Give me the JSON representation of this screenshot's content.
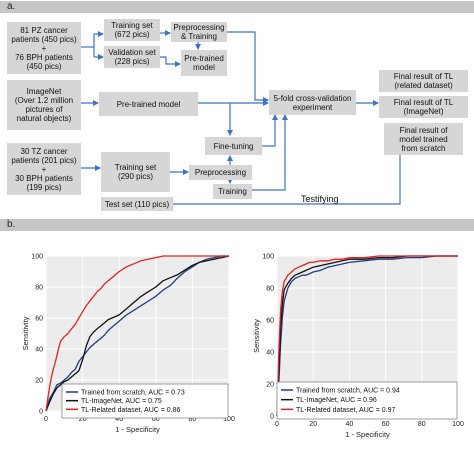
{
  "panel_a": {
    "label": "a.",
    "boxes": {
      "pz_bph": "81 PZ cancer\npatients (450 pics)\n+\n76 BPH patients\n(450 pics)",
      "imagenet": "ImageNet\n(Over 1.2 million\npictures of\nnatural objects)",
      "tz_bph": "30 TZ cancer\npatients (201 pics)\n+\n30 BPH patients\n(199 pics)",
      "training_set_1": "Training set\n(672 pics)",
      "validation_set": "Validation set\n(228 pics)",
      "preprocessing_training": "Preprocessing\n& Training",
      "pretrained_model_small": "Pre-trained\nmodel",
      "pretrained_model": "Pre-trained model",
      "cv_experiment": "5-fold cross-validation\nexperiment",
      "training_set_2": "Training set\n(290 pics)",
      "fine_tuning": "Fine-tuning",
      "preprocessing": "Preprocessing",
      "training": "Training",
      "test_set": "Test set (110 pics)"
    },
    "testifying": "Testifying",
    "results": {
      "r1": "Final result of TL\n(related dataset)",
      "r2": "Final result of TL\n(ImageNet)",
      "r3": "Final result of\nmodel trained\nfrom scratch"
    }
  },
  "panel_b": {
    "label": "b."
  },
  "colors": {
    "arrow": "#3a74c4",
    "box": "#d6d6d6",
    "plot_bg": "#ececec",
    "scratch": "#1f3d8a",
    "imagenet": "#111111",
    "related": "#e02424"
  },
  "chart_data": [
    {
      "type": "line",
      "xlabel": "1 - Specificity",
      "ylabel": "Sensitivity",
      "xlim": [
        0,
        100
      ],
      "ylim": [
        0,
        100
      ],
      "ticks": [
        0,
        20,
        40,
        60,
        80,
        100
      ],
      "grid": true,
      "legend": "bottom-right",
      "series": [
        {
          "name": "Trained from scratch, AUC = 0.73",
          "x": [
            0,
            2,
            4,
            6,
            8,
            10,
            12,
            14,
            16,
            18,
            20,
            22,
            24,
            26,
            28,
            30,
            32,
            34,
            36,
            38,
            40,
            44,
            48,
            52,
            56,
            60,
            64,
            68,
            72,
            76,
            80,
            84,
            88,
            92,
            96,
            100
          ],
          "y": [
            0,
            8,
            12,
            17,
            18,
            20,
            22,
            25,
            27,
            32,
            35,
            38,
            41,
            43,
            45,
            47,
            49,
            52,
            54,
            56,
            58,
            62,
            65,
            68,
            71,
            74,
            78,
            81,
            86,
            90,
            93,
            96,
            98,
            99,
            100,
            100
          ]
        },
        {
          "name": "TL-ImageNet, AUC = 0.75",
          "x": [
            0,
            2,
            4,
            6,
            8,
            10,
            12,
            14,
            16,
            18,
            20,
            22,
            24,
            26,
            28,
            30,
            32,
            34,
            36,
            38,
            40,
            44,
            48,
            52,
            56,
            60,
            64,
            68,
            72,
            76,
            80,
            84,
            88,
            92,
            96,
            100
          ],
          "y": [
            0,
            6,
            11,
            15,
            17,
            19,
            20,
            22,
            24,
            26,
            33,
            42,
            48,
            51,
            53,
            55,
            57,
            59,
            60,
            61,
            62,
            66,
            70,
            74,
            77,
            80,
            84,
            86,
            88,
            91,
            94,
            96,
            97,
            98,
            99,
            100
          ]
        },
        {
          "name": "TL-Related dataset, AUC = 0.86",
          "x": [
            0,
            1,
            2,
            3,
            4,
            5,
            6,
            7,
            8,
            10,
            12,
            14,
            16,
            18,
            20,
            22,
            24,
            26,
            28,
            30,
            32,
            34,
            36,
            38,
            40,
            44,
            48,
            52,
            56,
            60,
            64,
            68,
            72,
            76,
            80,
            84,
            88,
            92,
            96,
            100
          ],
          "y": [
            0,
            8,
            16,
            22,
            27,
            31,
            36,
            41,
            45,
            48,
            50,
            53,
            56,
            60,
            64,
            68,
            71,
            74,
            77,
            79,
            82,
            84,
            86,
            88,
            90,
            93,
            95,
            97,
            98,
            99,
            100,
            100,
            100,
            100,
            100,
            100,
            100,
            100,
            100,
            100
          ]
        }
      ]
    },
    {
      "type": "line",
      "xlabel": "1 - Specificity",
      "ylabel": "Sensitivity",
      "xlim": [
        0,
        100
      ],
      "ylim": [
        0,
        100
      ],
      "ticks": [
        0,
        20,
        40,
        60,
        80,
        100
      ],
      "grid": true,
      "legend": "bottom-right",
      "series": [
        {
          "name": "Trained from scratch, AUC = 0.94",
          "x": [
            0,
            1,
            2,
            3,
            4,
            6,
            8,
            10,
            12,
            14,
            16,
            18,
            20,
            24,
            28,
            32,
            36,
            40,
            48,
            56,
            64,
            72,
            80,
            88,
            96,
            100
          ],
          "y": [
            0,
            20,
            45,
            62,
            72,
            80,
            84,
            86,
            87,
            88,
            88,
            89,
            90,
            91,
            93,
            94,
            95,
            96,
            97,
            98,
            98,
            99,
            99,
            100,
            100,
            100
          ]
        },
        {
          "name": "TL-ImageNet, AUC = 0.96",
          "x": [
            0,
            1,
            2,
            3,
            4,
            6,
            8,
            10,
            12,
            14,
            16,
            18,
            20,
            24,
            28,
            32,
            36,
            40,
            48,
            56,
            64,
            72,
            80,
            88,
            96,
            100
          ],
          "y": [
            0,
            30,
            55,
            70,
            79,
            83,
            86,
            88,
            89,
            90,
            91,
            92,
            93,
            94,
            95,
            96,
            97,
            98,
            98,
            99,
            99,
            100,
            100,
            100,
            100,
            100
          ]
        },
        {
          "name": "TL-Related dataset, AUC = 0.97",
          "x": [
            0,
            1,
            2,
            3,
            4,
            6,
            8,
            10,
            12,
            14,
            16,
            18,
            20,
            24,
            28,
            32,
            36,
            40,
            48,
            56,
            64,
            72,
            80,
            88,
            96,
            100
          ],
          "y": [
            0,
            40,
            66,
            78,
            84,
            88,
            90,
            92,
            93,
            94,
            95,
            96,
            96,
            97,
            97,
            98,
            98,
            99,
            99,
            100,
            100,
            100,
            100,
            100,
            100,
            100
          ]
        }
      ]
    }
  ]
}
